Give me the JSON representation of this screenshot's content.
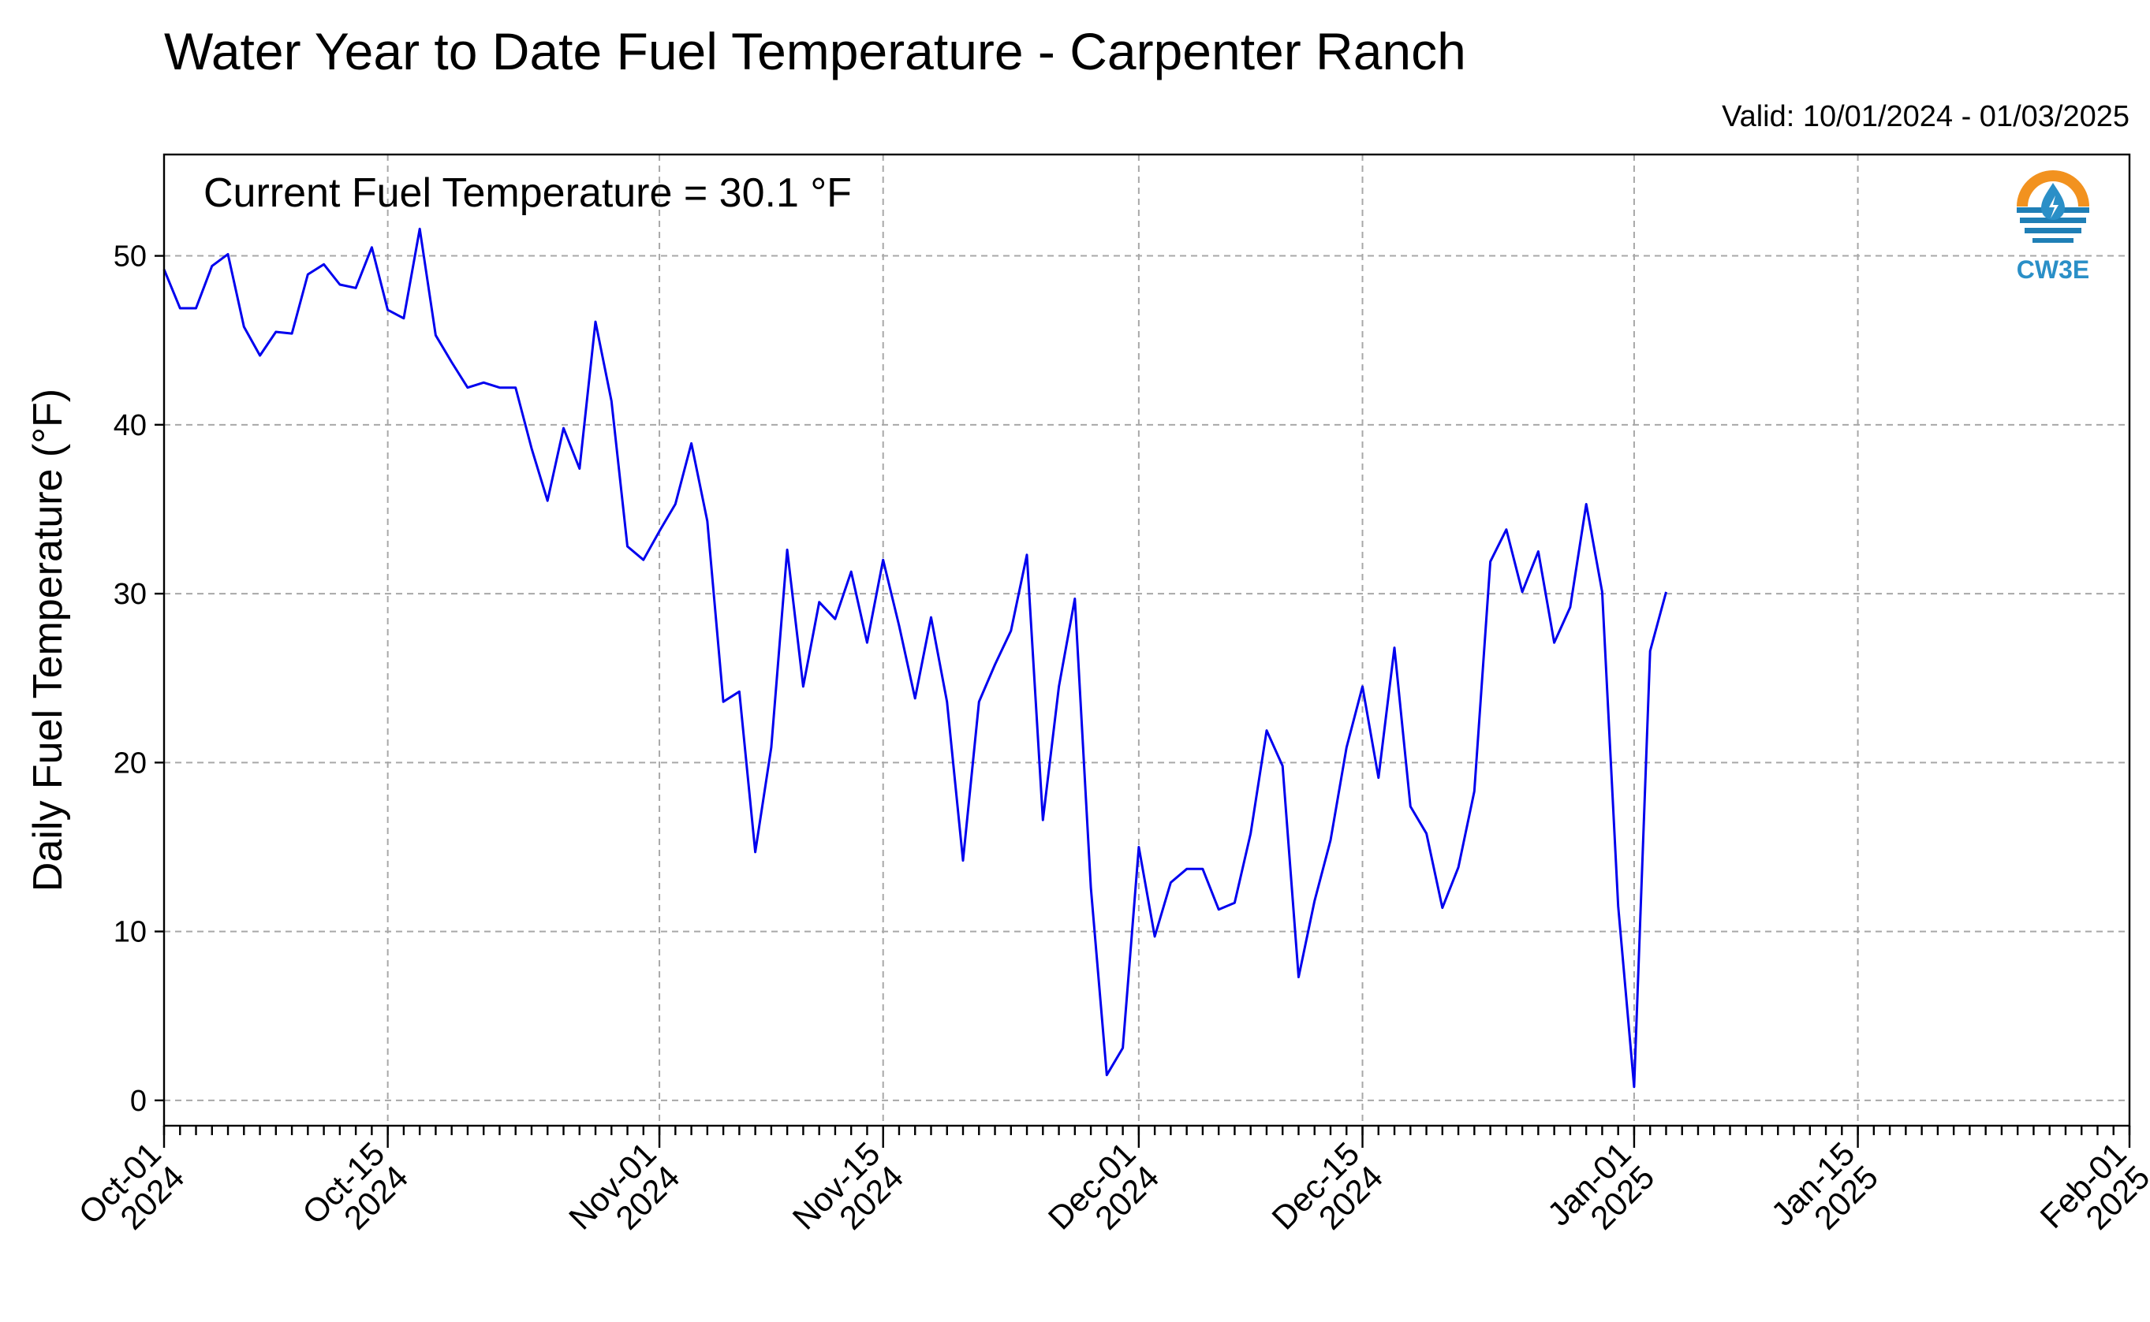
{
  "header": {
    "title": "Water Year to Date Fuel Temperature - Carpenter Ranch",
    "valid": "Valid: 10/01/2024 - 01/03/2025"
  },
  "annotation": "Current Fuel Temperature = 30.1  °F",
  "logo": {
    "text": "CW3E",
    "colors": {
      "sun": "#f2921f",
      "drop": "#2a8fc7",
      "waves": "#1f7fb6"
    }
  },
  "chart_data": {
    "type": "line",
    "title": "Water Year to Date Fuel Temperature - Carpenter Ranch",
    "xlabel": "",
    "ylabel": "Daily Fuel Temperature (°F)",
    "color": "#0000ee",
    "x_axis": {
      "type": "date",
      "start": "2024-10-01",
      "end": "2025-02-01"
    },
    "ylim": [
      -1.5,
      56
    ],
    "yticks": [
      0,
      10,
      20,
      30,
      40,
      50
    ],
    "grid": true,
    "xticks_major": [
      {
        "date": "2024-10-01",
        "label1": "Oct-01",
        "label2": "2024"
      },
      {
        "date": "2024-10-15",
        "label1": "Oct-15",
        "label2": "2024"
      },
      {
        "date": "2024-11-01",
        "label1": "Nov-01",
        "label2": "2024"
      },
      {
        "date": "2024-11-15",
        "label1": "Nov-15",
        "label2": "2024"
      },
      {
        "date": "2024-12-01",
        "label1": "Dec-01",
        "label2": "2024"
      },
      {
        "date": "2024-12-15",
        "label1": "Dec-15",
        "label2": "2024"
      },
      {
        "date": "2025-01-01",
        "label1": "Jan-01",
        "label2": "2025"
      },
      {
        "date": "2025-01-15",
        "label1": "Jan-15",
        "label2": "2025"
      },
      {
        "date": "2025-02-01",
        "label1": "Feb-01",
        "label2": "2025"
      }
    ],
    "series": [
      {
        "x": [
          "2024-10-01",
          "2024-10-02",
          "2024-10-03",
          "2024-10-04",
          "2024-10-05",
          "2024-10-06",
          "2024-10-07",
          "2024-10-08",
          "2024-10-09",
          "2024-10-10",
          "2024-10-11",
          "2024-10-12",
          "2024-10-13",
          "2024-10-14",
          "2024-10-15",
          "2024-10-16",
          "2024-10-17",
          "2024-10-18",
          "2024-10-19",
          "2024-10-20",
          "2024-10-21",
          "2024-10-22",
          "2024-10-23",
          "2024-10-24",
          "2024-10-25",
          "2024-10-26",
          "2024-10-27",
          "2024-10-28",
          "2024-10-29",
          "2024-10-30",
          "2024-10-31",
          "2024-11-01",
          "2024-11-02",
          "2024-11-03",
          "2024-11-04",
          "2024-11-05",
          "2024-11-06",
          "2024-11-07",
          "2024-11-08",
          "2024-11-09",
          "2024-11-10",
          "2024-11-11",
          "2024-11-12",
          "2024-11-13",
          "2024-11-14",
          "2024-11-15",
          "2024-11-16",
          "2024-11-17",
          "2024-11-18",
          "2024-11-19",
          "2024-11-20",
          "2024-11-21",
          "2024-11-22",
          "2024-11-23",
          "2024-11-24",
          "2024-11-25",
          "2024-11-26",
          "2024-11-27",
          "2024-11-28",
          "2024-11-29",
          "2024-11-30",
          "2024-12-01",
          "2024-12-02",
          "2024-12-03",
          "2024-12-04",
          "2024-12-05",
          "2024-12-06",
          "2024-12-07",
          "2024-12-08",
          "2024-12-09",
          "2024-12-10",
          "2024-12-11",
          "2024-12-12",
          "2024-12-13",
          "2024-12-14",
          "2024-12-15",
          "2024-12-16",
          "2024-12-17",
          "2024-12-18",
          "2024-12-19",
          "2024-12-20",
          "2024-12-21",
          "2024-12-22",
          "2024-12-23",
          "2024-12-24",
          "2024-12-25",
          "2024-12-26",
          "2024-12-27",
          "2024-12-28",
          "2024-12-29",
          "2024-12-30",
          "2024-12-31",
          "2025-01-01",
          "2025-01-02",
          "2025-01-03"
        ],
        "values": [
          49.2,
          46.9,
          46.9,
          49.4,
          50.1,
          45.8,
          44.1,
          45.5,
          45.4,
          48.9,
          49.5,
          48.3,
          48.1,
          50.5,
          46.8,
          46.3,
          51.6,
          45.3,
          43.7,
          42.2,
          42.5,
          42.2,
          42.2,
          38.6,
          35.5,
          39.8,
          37.4,
          46.1,
          41.4,
          32.8,
          32.0,
          33.7,
          35.3,
          38.9,
          34.3,
          23.6,
          24.2,
          14.7,
          20.9,
          32.6,
          24.5,
          29.5,
          28.5,
          31.3,
          27.1,
          32.0,
          28.1,
          23.8,
          28.6,
          23.6,
          14.2,
          23.6,
          25.8,
          27.8,
          32.3,
          16.6,
          24.5,
          29.7,
          12.6,
          1.5,
          3.1,
          15.0,
          9.7,
          12.9,
          13.7,
          13.7,
          11.3,
          11.7,
          15.8,
          21.9,
          19.8,
          7.3,
          11.8,
          15.4,
          20.9,
          24.5,
          19.1,
          26.8,
          17.4,
          15.8,
          11.4,
          13.8,
          18.3,
          31.9,
          33.8,
          30.1,
          32.5,
          27.1,
          29.2,
          35.3,
          30.1,
          11.5,
          0.8,
          26.6,
          30.1
        ]
      }
    ]
  }
}
